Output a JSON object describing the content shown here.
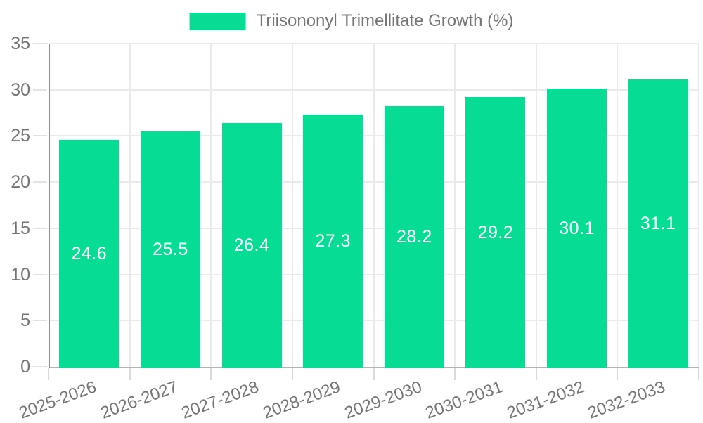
{
  "legend": {
    "swatch_icon": "legend-color-swatch",
    "label": "Triisononyl Trimellitate Growth (%)"
  },
  "colors": {
    "bar": "#06DC93",
    "bar_value_text": "#ffffff",
    "axis_text": "#757575",
    "grid_line": "#eaeaea",
    "y_axis_line": "#8f8f8f",
    "x_axis_line": "#b3b3b3",
    "background": "#ffffff"
  },
  "chart_data": {
    "type": "bar",
    "title": "",
    "series_label": "Triisononyl Trimellitate Growth (%)",
    "categories": [
      "2025-2026",
      "2026-2027",
      "2027-2028",
      "2028-2029",
      "2029-2030",
      "2030-2031",
      "2031-2032",
      "2032-2033"
    ],
    "values": [
      24.6,
      25.5,
      26.4,
      27.3,
      28.2,
      29.2,
      30.1,
      31.1
    ],
    "value_labels": [
      "24.6",
      "25.5",
      "26.4",
      "27.3",
      "28.2",
      "29.2",
      "30.1",
      "31.1"
    ],
    "xlabel": "",
    "ylabel": "",
    "ylim": [
      0,
      35
    ],
    "yticks": [
      0,
      5,
      10,
      15,
      20,
      25,
      30,
      35
    ],
    "grid": true,
    "legend_position": "top",
    "value_label_position": "inside-center",
    "x_label_rotation_deg": -20
  }
}
